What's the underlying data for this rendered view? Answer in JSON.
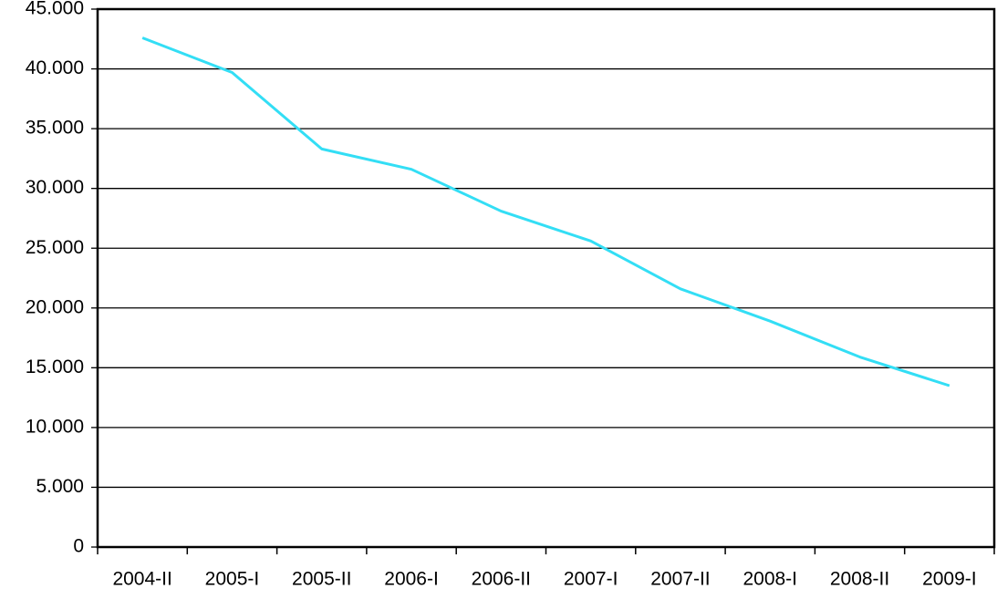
{
  "chart_data": {
    "type": "line",
    "categories": [
      "2004-II",
      "2005-I",
      "2005-II",
      "2006-I",
      "2006-II",
      "2007-I",
      "2007-II",
      "2008-I",
      "2008-II",
      "2009-I"
    ],
    "series": [
      {
        "name": null,
        "color": "#33def5",
        "values": [
          42600,
          39700,
          33300,
          31600,
          28100,
          25600,
          21600,
          18900,
          15900,
          13500
        ]
      }
    ],
    "ylim": [
      0,
      45000
    ],
    "yticks": [
      0,
      {
        "value": 5000,
        "label": "5.000"
      },
      {
        "value": 10000,
        "label": "10.000"
      },
      {
        "value": 15000,
        "label": "15.000"
      },
      {
        "value": 20000,
        "label": "20.000"
      },
      {
        "value": 25000,
        "label": "25.000"
      },
      {
        "value": 30000,
        "label": "30.000"
      },
      {
        "value": 35000,
        "label": "35.000"
      },
      {
        "value": 40000,
        "label": "40.000"
      },
      {
        "value": 45000,
        "label": "45.000"
      }
    ],
    "grid": true
  }
}
